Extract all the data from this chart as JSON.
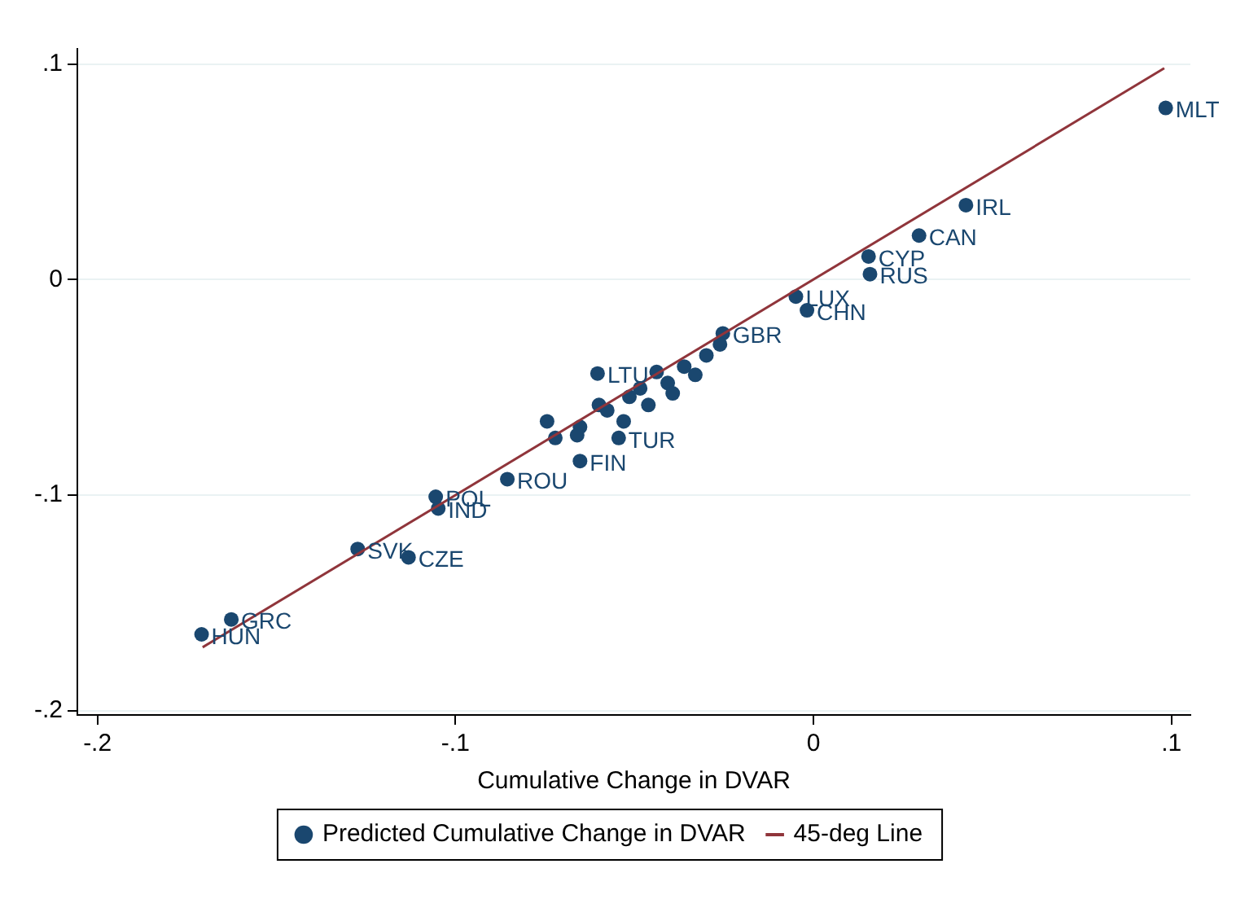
{
  "chart_data": {
    "type": "scatter",
    "xlabel": "Cumulative Change in DVAR",
    "xlim": [
      -0.2056,
      0.1053
    ],
    "ylim": [
      -0.202,
      0.107
    ],
    "xticks": [
      {
        "value": -0.2,
        "label": "-.2"
      },
      {
        "value": -0.1,
        "label": "-.1"
      },
      0,
      {
        "value": 0.1,
        "label": ".1"
      }
    ],
    "yticks": [
      {
        "value": -0.2,
        "label": "-.2"
      },
      {
        "value": -0.1,
        "label": "-.1"
      },
      0,
      {
        "value": 0.1,
        "label": ".1"
      }
    ],
    "grid": "y",
    "legend": "bottom",
    "series": [
      {
        "name": "Predicted Cumulative Change in DVAR",
        "marker": "circle",
        "color": "#1a476f",
        "x": [
          0.0984,
          0.0426,
          0.0295,
          0.0154,
          0.0158,
          -0.0049,
          -0.0018,
          -0.0253,
          -0.0603,
          -0.0652,
          -0.0855,
          -0.0744,
          -0.1055,
          -0.1048,
          -0.1273,
          -0.1131,
          -0.1626,
          -0.1709,
          -0.0261,
          -0.0299,
          -0.0361,
          -0.0438,
          -0.0407,
          -0.0484,
          -0.0514,
          -0.0599,
          -0.0576,
          -0.053,
          -0.0652,
          -0.0721,
          -0.066,
          -0.0544,
          -0.0461,
          -0.033,
          -0.0393
        ],
        "values": [
          0.0796,
          0.0345,
          0.0204,
          0.0107,
          0.0025,
          -0.0079,
          -0.0143,
          -0.025,
          -0.0436,
          -0.0842,
          -0.0926,
          -0.0658,
          -0.1008,
          -0.1062,
          -0.125,
          -0.1289,
          -0.1577,
          -0.1646,
          -0.0301,
          -0.0352,
          -0.0404,
          -0.0429,
          -0.048,
          -0.0505,
          -0.0544,
          -0.0582,
          -0.0607,
          -0.0658,
          -0.0684,
          -0.0735,
          -0.0722,
          -0.0735,
          -0.0582,
          -0.0442,
          -0.0528
        ],
        "value_labels": [
          "MLT",
          "IRL",
          "CAN",
          "CYP",
          "RUS",
          "LUX",
          "CHN",
          "GBR",
          "LTU",
          "FIN",
          "ROU",
          null,
          "POL",
          "IND",
          "SVK",
          "CZE",
          "GRC",
          "HUN",
          null,
          null,
          null,
          null,
          null,
          null,
          null,
          null,
          null,
          null,
          null,
          null,
          null,
          "TUR",
          null,
          null,
          null
        ]
      },
      {
        "name": "45-deg Line",
        "type": "line",
        "marker": "none",
        "color": "#90353b",
        "x": [
          -0.1706,
          0.098
        ],
        "values": [
          -0.1706,
          0.098
        ]
      }
    ]
  }
}
